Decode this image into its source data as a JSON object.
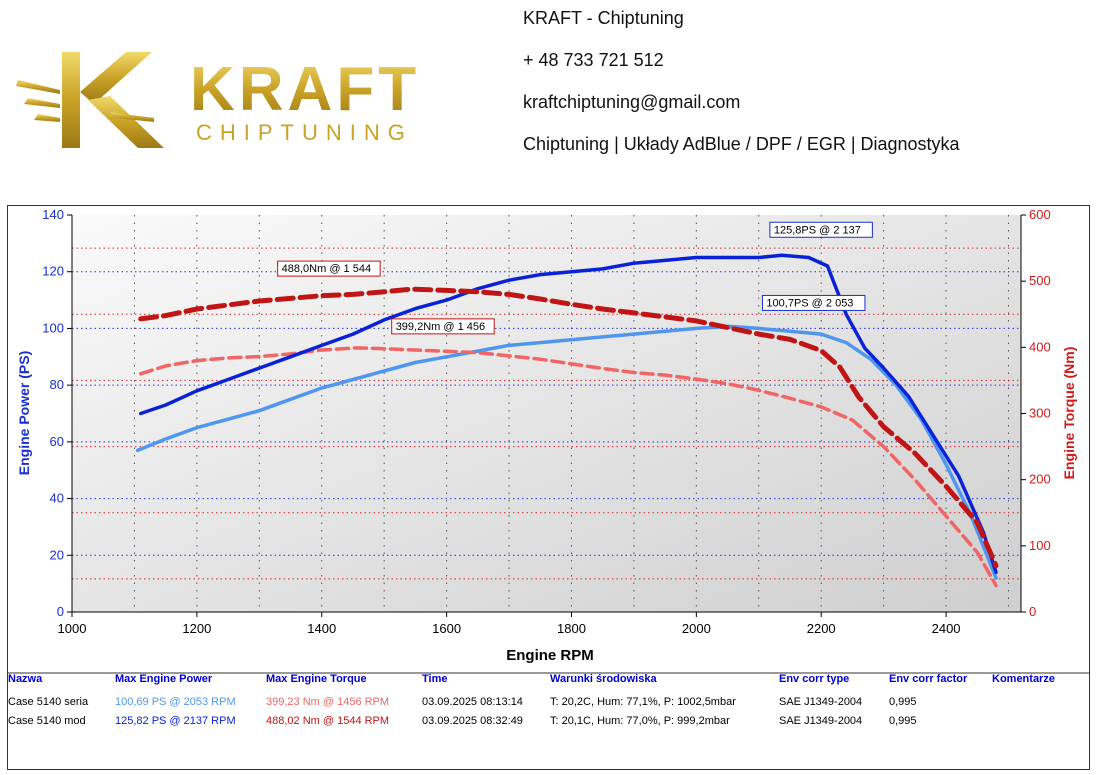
{
  "header": {
    "logo_text": "KRAFT",
    "logo_subtext": "CHIPTUNING",
    "company": "KRAFT - Chiptuning",
    "phone": "+ 48 733 721 512",
    "email": "kraftchiptuning@gmail.com",
    "services": "Chiptuning | Układy AdBlue / DPF / EGR | Diagnostyka"
  },
  "colors": {
    "mod_power": "#0a22d6",
    "stock_power": "#4f97ee",
    "mod_torque": "#c01515",
    "stock_torque": "#f06565",
    "axis_left": "#1a2fcf",
    "axis_right": "#d11a1a"
  },
  "chart_data": {
    "type": "line",
    "xlabel": "Engine RPM",
    "ylabel_left": "Engine Power (PS)",
    "ylabel_right": "Engine Torque (Nm)",
    "xlim": [
      1000,
      2520
    ],
    "ylim_left": [
      0,
      140
    ],
    "ylim_right": [
      0,
      600
    ],
    "x_ticks": [
      "1000",
      "1200",
      "1400",
      "1600",
      "1800",
      "2000",
      "2200",
      "2400"
    ],
    "y_left_ticks": [
      "0",
      "20",
      "40",
      "60",
      "80",
      "100",
      "120",
      "140"
    ],
    "y_right_ticks": [
      "0",
      "100",
      "200",
      "300",
      "400",
      "500",
      "600"
    ],
    "series": [
      {
        "name": "Case 5140 mod power",
        "axis": "left",
        "style": "solid",
        "x": [
          1110,
          1150,
          1200,
          1250,
          1300,
          1350,
          1400,
          1450,
          1500,
          1550,
          1600,
          1650,
          1700,
          1750,
          1800,
          1850,
          1900,
          1950,
          2000,
          2050,
          2100,
          2137,
          2180,
          2210,
          2240,
          2270,
          2300,
          2340,
          2380,
          2420,
          2460,
          2480
        ],
        "y": [
          70,
          73,
          78,
          82,
          86,
          90,
          94,
          98,
          103,
          107,
          110,
          114,
          117,
          119,
          120,
          121,
          123,
          124,
          125,
          125,
          125,
          125.8,
          125,
          122,
          105,
          93,
          86,
          76,
          62,
          48,
          28,
          14
        ]
      },
      {
        "name": "Case 5140 seria power",
        "axis": "left",
        "style": "solid",
        "x": [
          1105,
          1150,
          1200,
          1250,
          1300,
          1350,
          1400,
          1450,
          1500,
          1550,
          1600,
          1650,
          1700,
          1750,
          1800,
          1850,
          1900,
          1950,
          2000,
          2053,
          2100,
          2150,
          2200,
          2240,
          2280,
          2320,
          2360,
          2400,
          2440,
          2480
        ],
        "y": [
          57,
          61,
          65,
          68,
          71,
          75,
          79,
          82,
          85,
          88,
          90,
          92,
          94,
          95,
          96,
          97,
          98,
          99,
          100,
          100.7,
          100,
          99,
          98,
          95,
          89,
          80,
          68,
          52,
          34,
          12
        ]
      },
      {
        "name": "Case 5140 mod torque",
        "axis": "right",
        "style": "dashed",
        "x": [
          1110,
          1150,
          1200,
          1250,
          1300,
          1350,
          1400,
          1450,
          1500,
          1544,
          1600,
          1650,
          1700,
          1750,
          1800,
          1850,
          1900,
          1950,
          2000,
          2050,
          2100,
          2150,
          2200,
          2230,
          2260,
          2300,
          2350,
          2400,
          2450,
          2480
        ],
        "y": [
          443,
          448,
          458,
          464,
          470,
          474,
          478,
          480,
          484,
          488,
          486,
          484,
          480,
          473,
          465,
          458,
          452,
          446,
          440,
          430,
          420,
          412,
          395,
          370,
          325,
          280,
          240,
          190,
          135,
          70
        ]
      },
      {
        "name": "Case 5140 seria torque",
        "axis": "right",
        "style": "dashed",
        "x": [
          1110,
          1150,
          1200,
          1250,
          1300,
          1350,
          1400,
          1456,
          1500,
          1550,
          1600,
          1650,
          1700,
          1750,
          1800,
          1850,
          1900,
          1950,
          2000,
          2050,
          2100,
          2150,
          2200,
          2250,
          2300,
          2350,
          2400,
          2450,
          2480
        ],
        "y": [
          360,
          372,
          380,
          384,
          386,
          390,
          396,
          399.2,
          398,
          396,
          394,
          392,
          387,
          382,
          375,
          368,
          362,
          358,
          352,
          345,
          335,
          323,
          310,
          290,
          250,
          200,
          145,
          90,
          40
        ]
      }
    ],
    "annotations": [
      {
        "text": "125,8PS @ 2 137",
        "color": "#1a2fcf"
      },
      {
        "text": "100,7PS @ 2 053",
        "color": "#1a2fcf"
      },
      {
        "text": "488,0Nm @ 1 544",
        "color": "#c01515"
      },
      {
        "text": "399,2Nm @ 1 456",
        "color": "#c01515"
      }
    ]
  },
  "table": {
    "headers": [
      "Nazwa",
      "Max Engine Power",
      "Max Engine Torque",
      "Time",
      "Warunki środowiska",
      "Env corr type",
      "Env corr factor",
      "Komentarze"
    ],
    "rows": [
      {
        "name": "Case 5140 seria",
        "power": "100,69 PS @ 2053 RPM",
        "torque": "399,23 Nm @ 1456 RPM",
        "time": "03.09.2025 08:13:14",
        "conditions": "T: 20,2C, Hum: 77,1%, P: 1002,5mbar",
        "corr_type": "SAE J1349-2004",
        "corr_factor": "0,995",
        "comment": ""
      },
      {
        "name": "Case 5140 mod",
        "power": "125,82 PS @ 2137 RPM",
        "torque": "488,02 Nm @ 1544 RPM",
        "time": "03.09.2025 08:32:49",
        "conditions": "T: 20,1C, Hum: 77,0%, P: 999,2mbar",
        "corr_type": "SAE J1349-2004",
        "corr_factor": "0,995",
        "comment": ""
      }
    ]
  }
}
